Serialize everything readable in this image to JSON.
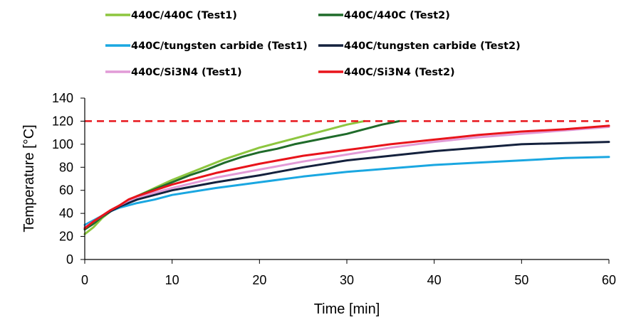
{
  "chart_data": {
    "type": "line",
    "xlabel": "Time [min]",
    "ylabel": "Temperature [°C]",
    "xlim": [
      0,
      60
    ],
    "ylim": [
      0,
      140
    ],
    "xticks": [
      0,
      10,
      20,
      30,
      40,
      50,
      60
    ],
    "yticks": [
      0,
      20,
      40,
      60,
      80,
      100,
      120,
      140
    ],
    "grid": false,
    "legend_position": "top",
    "reference_line": {
      "y": 120,
      "style": "dashed",
      "color": "#e8141b"
    },
    "series": [
      {
        "name": "440C/440C (Test1)",
        "color": "#8dc63f",
        "x": [
          0,
          1,
          2,
          3,
          4,
          5,
          6,
          8,
          10,
          12,
          14,
          16,
          18,
          20,
          22,
          24,
          26,
          28,
          30,
          32
        ],
        "y": [
          22,
          28,
          36,
          42,
          47,
          51,
          55,
          62,
          69,
          75,
          81,
          87,
          92,
          97,
          101,
          105,
          109,
          113,
          117,
          120
        ]
      },
      {
        "name": "440C/440C (Test2)",
        "color": "#1f6b2a",
        "x": [
          0,
          1,
          2,
          3,
          4,
          5,
          6,
          8,
          10,
          12,
          14,
          16,
          18,
          20,
          22,
          24,
          26,
          28,
          30,
          32,
          34,
          36
        ],
        "y": [
          26,
          31,
          37,
          42,
          47,
          51,
          55,
          61,
          67,
          73,
          78,
          84,
          89,
          93,
          96,
          100,
          103,
          106,
          109,
          113,
          117,
          120
        ]
      },
      {
        "name": "440C/tungsten carbide (Test1)",
        "color": "#1aa7e1",
        "x": [
          0,
          1,
          2,
          3,
          4,
          5,
          6,
          8,
          10,
          15,
          20,
          25,
          30,
          35,
          40,
          45,
          50,
          55,
          60
        ],
        "y": [
          30,
          34,
          38,
          42,
          45,
          47,
          49,
          52,
          56,
          62,
          67,
          72,
          76,
          79,
          82,
          84,
          86,
          88,
          89
        ]
      },
      {
        "name": "440C/tungsten carbide (Test2)",
        "color": "#14213d",
        "x": [
          0,
          1,
          2,
          3,
          4,
          5,
          6,
          8,
          10,
          15,
          20,
          25,
          30,
          35,
          40,
          45,
          50,
          55,
          60
        ],
        "y": [
          28,
          33,
          38,
          42,
          46,
          49,
          52,
          56,
          60,
          67,
          73,
          80,
          86,
          90,
          94,
          97,
          100,
          101,
          102
        ]
      },
      {
        "name": "440C/Si3N4 (Test1)",
        "color": "#e29bd7",
        "x": [
          0,
          1,
          2,
          3,
          4,
          5,
          6,
          8,
          10,
          15,
          20,
          25,
          30,
          35,
          40,
          45,
          50,
          55,
          60
        ],
        "y": [
          28,
          33,
          38,
          43,
          47,
          51,
          54,
          58,
          62,
          71,
          78,
          85,
          91,
          97,
          102,
          106,
          109,
          112,
          115
        ]
      },
      {
        "name": "440C/Si3N4 (Test2)",
        "color": "#e8141b",
        "x": [
          0,
          1,
          2,
          3,
          4,
          5,
          6,
          8,
          10,
          15,
          20,
          25,
          30,
          35,
          40,
          45,
          50,
          55,
          60
        ],
        "y": [
          27,
          33,
          38,
          43,
          47,
          52,
          55,
          60,
          65,
          75,
          83,
          90,
          95,
          100,
          104,
          108,
          111,
          113,
          116
        ]
      }
    ]
  }
}
